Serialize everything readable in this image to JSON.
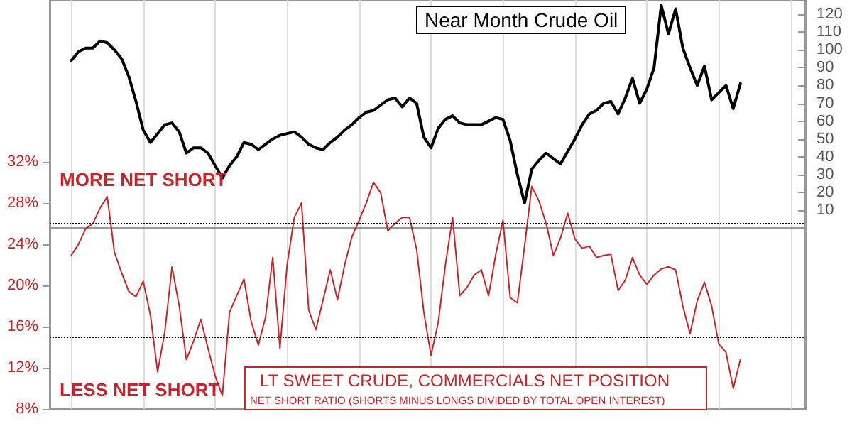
{
  "chart_data": {
    "type": "line",
    "title": "Near Month Crude Oil",
    "annotations": [
      "MORE NET SHORT",
      "LESS NET SHORT",
      "LT SWEET CRUDE, COMMERCIALS NET POSITION",
      "NET SHORT RATIO (SHORTS MINUS LONGS DIVIDED BY TOTAL OPEN INTEREST)"
    ],
    "categories": [
      null,
      null,
      null,
      null,
      null,
      null,
      null,
      null,
      null,
      null,
      null,
      null,
      null,
      null,
      null,
      null,
      null,
      null,
      null,
      null,
      null,
      null,
      null,
      null,
      null,
      null,
      null,
      null,
      null,
      null,
      null,
      null,
      null,
      null,
      null,
      null,
      null,
      null,
      null,
      null,
      null,
      null,
      null,
      null,
      null,
      null,
      null,
      null,
      null,
      null,
      null,
      null,
      null,
      null,
      null,
      null,
      null,
      null,
      null,
      null,
      null,
      null,
      null,
      null,
      null,
      null,
      null,
      null,
      null,
      null,
      null,
      null,
      null,
      null,
      null,
      null,
      null,
      null,
      null,
      null,
      null,
      null,
      null,
      null,
      null,
      null,
      null,
      null,
      null,
      null,
      null,
      null,
      null,
      null,
      null,
      null,
      null,
      null,
      null,
      null,
      null,
      null,
      null,
      null,
      null,
      null
    ],
    "series": [
      {
        "color": "#000000",
        "axis": "y2",
        "values": [
          null,
          null,
          null,
          94,
          99,
          101,
          101,
          105,
          104,
          100,
          95,
          85,
          71,
          55,
          48,
          53,
          58,
          59,
          54,
          42,
          45,
          45,
          42,
          35,
          28,
          35,
          40,
          48,
          47,
          44,
          47,
          50,
          52,
          53,
          54,
          51,
          47,
          45,
          44,
          48,
          51,
          55,
          58,
          62,
          65,
          66,
          69,
          72,
          73,
          68,
          73,
          70,
          51,
          45,
          56,
          61,
          63,
          59,
          58,
          58,
          58,
          60,
          62,
          61,
          49,
          30,
          14,
          33,
          38,
          42,
          39,
          36,
          43,
          50,
          58,
          64,
          66,
          70,
          71,
          64,
          73,
          84,
          70,
          78,
          90,
          125,
          109,
          123,
          101,
          90,
          80,
          91,
          72,
          76,
          80,
          67,
          81,
          null,
          null,
          null,
          null,
          null,
          null,
          null,
          null,
          null
        ]
      },
      {
        "color": "#c0282d",
        "axis": "y",
        "values": [
          null,
          null,
          null,
          22.9,
          24,
          25.5,
          26,
          27.5,
          28.6,
          23.2,
          21.2,
          19.4,
          18.9,
          20.4,
          17.1,
          11.6,
          15.5,
          21.8,
          18,
          12.8,
          14.6,
          16.7,
          13.9,
          11.2,
          9.3,
          17.4,
          19,
          20.6,
          16.5,
          14.2,
          16.9,
          22.7,
          13.9,
          22,
          26.6,
          28,
          17.6,
          15.7,
          18.6,
          21.5,
          18.6,
          22,
          24.7,
          26.3,
          28,
          30,
          29,
          25.3,
          26,
          26.6,
          26.6,
          23.5,
          17.4,
          13.2,
          16.4,
          22,
          26.6,
          19,
          19.8,
          21,
          21.5,
          19,
          23,
          26.3,
          18.8,
          18.3,
          23.8,
          29.6,
          28.2,
          26,
          22.9,
          24.6,
          27,
          24.5,
          23.6,
          23.8,
          22.7,
          22.9,
          23,
          19.5,
          20.5,
          22.7,
          21,
          20.1,
          21,
          21.6,
          21.8,
          21.5,
          18,
          15.3,
          18.5,
          20.3,
          18,
          14.3,
          13.5,
          10,
          12.8,
          null,
          null,
          null,
          null,
          null,
          null,
          null,
          null,
          null
        ]
      }
    ],
    "ylim": [
      8,
      47.7
    ],
    "yticks": [
      {
        "value": 8,
        "label": "8%"
      },
      {
        "value": 12,
        "label": "12%"
      },
      {
        "value": 16,
        "label": "16%"
      },
      {
        "value": 20,
        "label": "20%"
      },
      {
        "value": 24,
        "label": "24%"
      },
      {
        "value": 28,
        "label": "28%"
      },
      {
        "value": 32,
        "label": "32%"
      }
    ],
    "y2lim": [
      -101.6,
      128
    ],
    "y2ticks": [
      10,
      20,
      30,
      40,
      50,
      60,
      70,
      80,
      90,
      100,
      110,
      120
    ],
    "ref_lines": [
      {
        "axis": "y",
        "value": 26,
        "line_style": "dotted",
        "color": "#000000"
      },
      {
        "axis": "y",
        "value": 15,
        "line_style": "dotted",
        "color": "#000000"
      }
    ],
    "grid": "x",
    "line_style": "solid",
    "tick_labels": "y"
  }
}
